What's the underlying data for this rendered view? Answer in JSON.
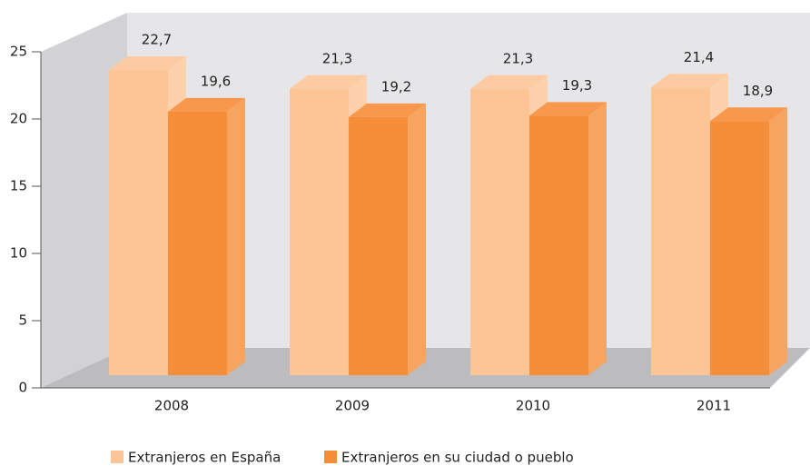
{
  "chart_data": {
    "type": "bar3d",
    "categories": [
      "2008",
      "2009",
      "2010",
      "2011"
    ],
    "series": [
      {
        "name": "Extranjeros en España",
        "color": "#fdc596",
        "values": [
          22.7,
          21.3,
          21.3,
          21.4
        ],
        "value_labels": [
          "22,7",
          "21,3",
          "21,3",
          "21,4"
        ]
      },
      {
        "name": "Extranjeros en su ciudad o pueblo",
        "color": "#f68d39",
        "values": [
          19.6,
          19.2,
          19.3,
          18.9
        ],
        "value_labels": [
          "19,6",
          "19,2",
          "19,3",
          "18,9"
        ]
      }
    ],
    "ylim": [
      0,
      25
    ],
    "yticks": [
      0,
      5,
      10,
      15,
      20,
      25
    ]
  }
}
